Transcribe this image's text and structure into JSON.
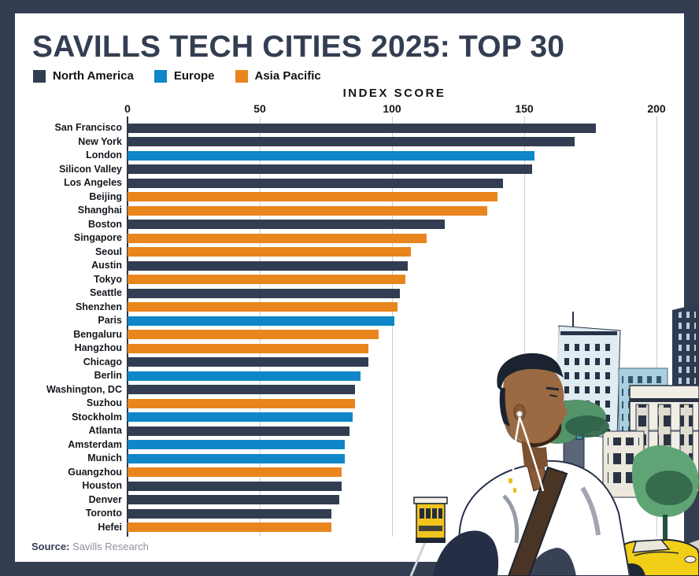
{
  "header": {
    "title": "SAVILLS TECH CITIES 2025: TOP 30"
  },
  "legend": {
    "items": [
      {
        "label": "North America",
        "color": "#323D52"
      },
      {
        "label": "Europe",
        "color": "#0F86C8"
      },
      {
        "label": "Asia Pacific",
        "color": "#E8861D"
      }
    ]
  },
  "footer": {
    "source_label": "Source:",
    "source_value": "Savills Research"
  },
  "colors": {
    "frame": "#333E52",
    "north_america": "#323D52",
    "europe": "#0F86C8",
    "asia_pacific": "#E8861D",
    "gridline": "#CDCDCD"
  },
  "illustration": {
    "alt": "Collage illustration of a man wearing earbuds in front of San Francisco buildings, trees, a cable car and a yellow taxi"
  },
  "chart_data": {
    "type": "bar",
    "orientation": "horizontal",
    "title": "SAVILLS TECH CITIES 2025: TOP 30",
    "axis_label": "INDEX SCORE",
    "xlabel": "INDEX SCORE",
    "ylabel": "",
    "xlim": [
      0,
      200
    ],
    "x_ticks": [
      0,
      50,
      100,
      150,
      200
    ],
    "grid": true,
    "legend_position": "top-left",
    "regions": {
      "North America": "#323D52",
      "Europe": "#0F86C8",
      "Asia Pacific": "#E8861D"
    },
    "cities": [
      {
        "name": "San Francisco",
        "region": "North America",
        "value": 177
      },
      {
        "name": "New York",
        "region": "North America",
        "value": 169
      },
      {
        "name": "London",
        "region": "Europe",
        "value": 154
      },
      {
        "name": "Silicon Valley",
        "region": "North America",
        "value": 153
      },
      {
        "name": "Los Angeles",
        "region": "North America",
        "value": 142
      },
      {
        "name": "Beijing",
        "region": "Asia Pacific",
        "value": 140
      },
      {
        "name": "Shanghai",
        "region": "Asia Pacific",
        "value": 136
      },
      {
        "name": "Boston",
        "region": "North America",
        "value": 120
      },
      {
        "name": "Singapore",
        "region": "Asia Pacific",
        "value": 113
      },
      {
        "name": "Seoul",
        "region": "Asia Pacific",
        "value": 107
      },
      {
        "name": "Austin",
        "region": "North America",
        "value": 106
      },
      {
        "name": "Tokyo",
        "region": "Asia Pacific",
        "value": 105
      },
      {
        "name": "Seattle",
        "region": "North America",
        "value": 103
      },
      {
        "name": "Shenzhen",
        "region": "Asia Pacific",
        "value": 102
      },
      {
        "name": "Paris",
        "region": "Europe",
        "value": 101
      },
      {
        "name": "Bengaluru",
        "region": "Asia Pacific",
        "value": 95
      },
      {
        "name": "Hangzhou",
        "region": "Asia Pacific",
        "value": 91
      },
      {
        "name": "Chicago",
        "region": "North America",
        "value": 91
      },
      {
        "name": "Berlin",
        "region": "Europe",
        "value": 88
      },
      {
        "name": "Washington, DC",
        "region": "North America",
        "value": 86
      },
      {
        "name": "Suzhou",
        "region": "Asia Pacific",
        "value": 86
      },
      {
        "name": "Stockholm",
        "region": "Europe",
        "value": 85
      },
      {
        "name": "Atlanta",
        "region": "North America",
        "value": 84
      },
      {
        "name": "Amsterdam",
        "region": "Europe",
        "value": 82
      },
      {
        "name": "Munich",
        "region": "Europe",
        "value": 82
      },
      {
        "name": "Guangzhou",
        "region": "Asia Pacific",
        "value": 81
      },
      {
        "name": "Houston",
        "region": "North America",
        "value": 81
      },
      {
        "name": "Denver",
        "region": "North America",
        "value": 80
      },
      {
        "name": "Toronto",
        "region": "North America",
        "value": 77
      },
      {
        "name": "Hefei",
        "region": "Asia Pacific",
        "value": 77
      }
    ]
  }
}
